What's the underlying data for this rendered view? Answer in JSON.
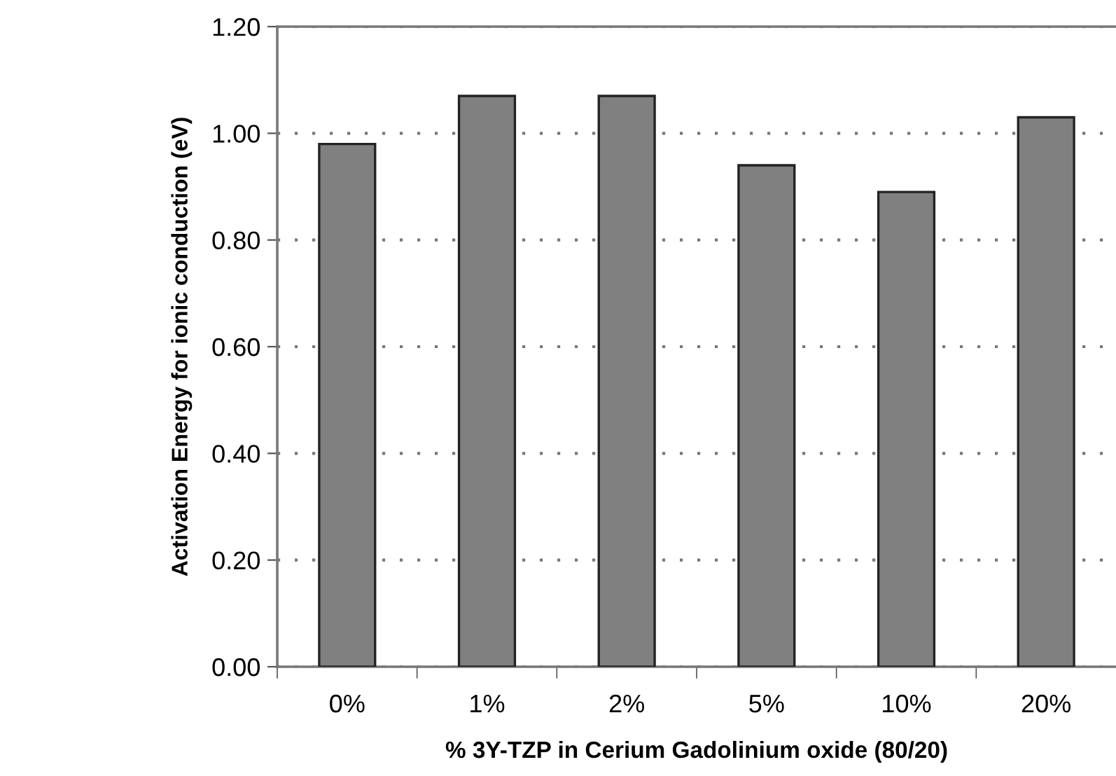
{
  "chart_data": {
    "type": "bar",
    "xlabel": "% 3Y-TZP in Cerium Gadolinium oxide (80/20)",
    "ylabel": "Activation Energy for ionic conduction (eV)",
    "categories": [
      "0%",
      "1%",
      "2%",
      "5%",
      "10%",
      "20%"
    ],
    "values": [
      0.98,
      1.07,
      1.07,
      0.94,
      0.89,
      1.03
    ],
    "color": "#808080",
    "ylim": [
      0,
      1.2
    ],
    "yticks": [
      {
        "value": 0,
        "label": "0.00"
      },
      {
        "value": 0.2,
        "label": "0.20"
      },
      {
        "value": 0.4,
        "label": "0.40"
      },
      {
        "value": 0.6,
        "label": "0.60"
      },
      {
        "value": 0.8,
        "label": "0.80"
      },
      {
        "value": 1.0,
        "label": "1.00"
      },
      {
        "value": 1.2,
        "label": "1.20"
      }
    ],
    "grid": "y"
  }
}
